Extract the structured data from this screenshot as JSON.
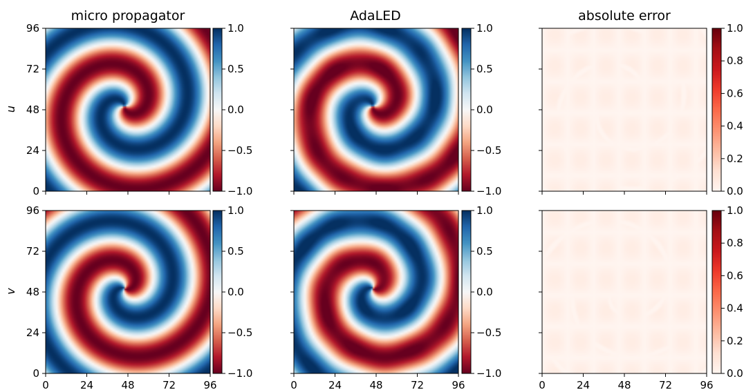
{
  "chart_data": {
    "type": "heatmap",
    "grid": "off",
    "row_labels": [
      "u",
      "v"
    ],
    "column_titles": [
      "micro propagator",
      "AdaLED",
      "absolute error"
    ],
    "x_ticks": [
      "0",
      "24",
      "48",
      "72",
      "96"
    ],
    "y_ticks": [
      "0",
      "24",
      "48",
      "72",
      "96"
    ],
    "xlim": [
      0,
      96
    ],
    "ylim": [
      0,
      96
    ],
    "colormaps": {
      "field": "RdBu",
      "error": "Reds"
    },
    "field_colorbar": {
      "vmin": -1.0,
      "vmax": 1.0,
      "ticks": [
        "1.0",
        "0.5",
        "0.0",
        "−0.5",
        "−1.0"
      ]
    },
    "error_colorbar": {
      "vmin": 0.0,
      "vmax": 1.0,
      "ticks": [
        "1.0",
        "0.8",
        "0.6",
        "0.4",
        "0.2",
        "0.0"
      ]
    },
    "panels": [
      {
        "row": "u",
        "column": "micro propagator",
        "colorbar": "field"
      },
      {
        "row": "u",
        "column": "AdaLED",
        "colorbar": "field"
      },
      {
        "row": "u",
        "column": "absolute error",
        "colorbar": "error",
        "approx_value_range": [
          0.0,
          0.08
        ]
      },
      {
        "row": "v",
        "column": "micro propagator",
        "colorbar": "field"
      },
      {
        "row": "v",
        "column": "AdaLED",
        "colorbar": "field"
      },
      {
        "row": "v",
        "column": "absolute error",
        "colorbar": "error",
        "approx_value_range": [
          0.0,
          0.08
        ]
      }
    ]
  }
}
